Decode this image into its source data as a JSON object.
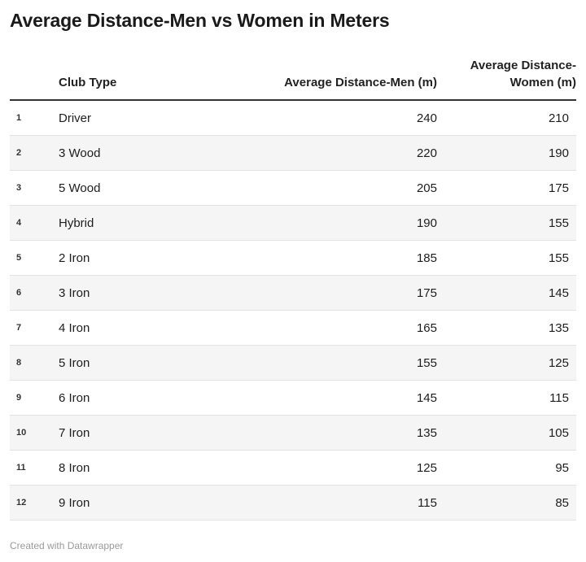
{
  "title": "Average Distance-Men vs Women in Meters",
  "footer": "Created with Datawrapper",
  "table": {
    "headers": {
      "club": "Club Type",
      "men": "Average Distance-Men (m)",
      "women": "Average Distance-Women (m)"
    },
    "rows": [
      {
        "idx": "1",
        "club": "Driver",
        "men": "240",
        "women": "210"
      },
      {
        "idx": "2",
        "club": "3 Wood",
        "men": "220",
        "women": "190"
      },
      {
        "idx": "3",
        "club": "5 Wood",
        "men": "205",
        "women": "175"
      },
      {
        "idx": "4",
        "club": "Hybrid",
        "men": "190",
        "women": "155"
      },
      {
        "idx": "5",
        "club": "2 Iron",
        "men": "185",
        "women": "155"
      },
      {
        "idx": "6",
        "club": "3 Iron",
        "men": "175",
        "women": "145"
      },
      {
        "idx": "7",
        "club": "4 Iron",
        "men": "165",
        "women": "135"
      },
      {
        "idx": "8",
        "club": "5 Iron",
        "men": "155",
        "women": "125"
      },
      {
        "idx": "9",
        "club": "6 Iron",
        "men": "145",
        "women": "115"
      },
      {
        "idx": "10",
        "club": "7 Iron",
        "men": "135",
        "women": "105"
      },
      {
        "idx": "11",
        "club": "8 Iron",
        "men": "125",
        "women": "95"
      },
      {
        "idx": "12",
        "club": "9 Iron",
        "men": "115",
        "women": "85"
      }
    ]
  },
  "chart_data": {
    "type": "table",
    "title": "Average Distance-Men vs Women in Meters",
    "columns": [
      "Club Type",
      "Average Distance-Men (m)",
      "Average Distance-Women (m)"
    ],
    "categories": [
      "Driver",
      "3 Wood",
      "5 Wood",
      "Hybrid",
      "2 Iron",
      "3 Iron",
      "4 Iron",
      "5 Iron",
      "6 Iron",
      "7 Iron",
      "8 Iron",
      "9 Iron"
    ],
    "series": [
      {
        "name": "Average Distance-Men (m)",
        "values": [
          240,
          220,
          205,
          190,
          185,
          175,
          165,
          155,
          145,
          135,
          125,
          115
        ]
      },
      {
        "name": "Average Distance-Women (m)",
        "values": [
          210,
          190,
          175,
          155,
          155,
          145,
          135,
          125,
          115,
          105,
          95,
          85
        ]
      }
    ]
  }
}
